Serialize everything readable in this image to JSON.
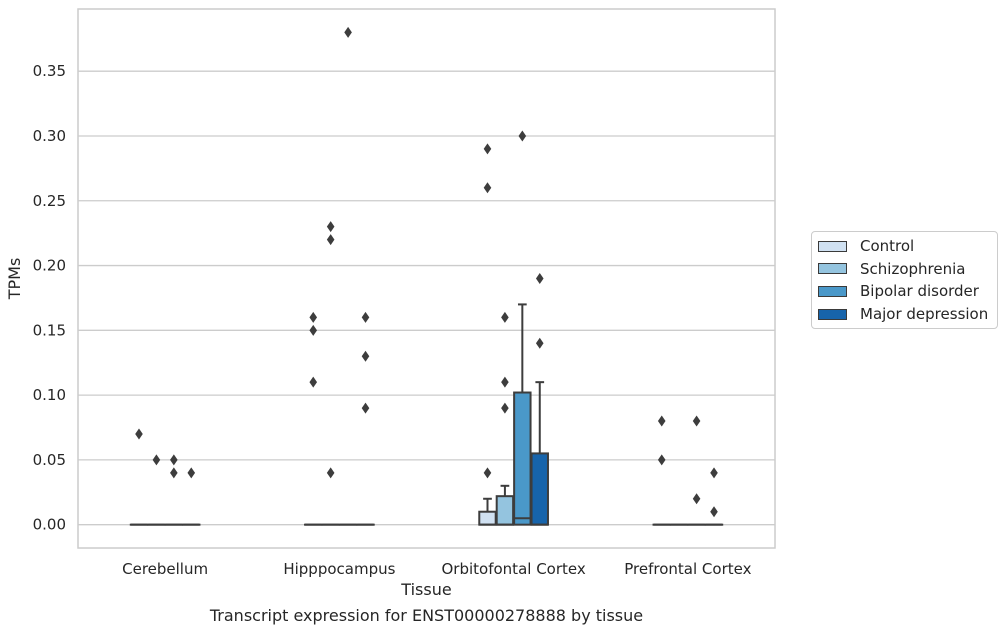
{
  "chart_data": {
    "type": "box",
    "xlabel": "Tissue",
    "ylabel": "TPMs",
    "caption": "Transcript expression for ENST00000278888 by tissue",
    "ylim": [
      -0.018,
      0.398
    ],
    "yticks": [
      0.0,
      0.05,
      0.1,
      0.15,
      0.2,
      0.25,
      0.3,
      0.35
    ],
    "ytick_labels": [
      "0.00",
      "0.05",
      "0.10",
      "0.15",
      "0.20",
      "0.25",
      "0.30",
      "0.35"
    ],
    "grid": "horizontal",
    "legend_position": "right",
    "categories": [
      "Cerebellum",
      "Hipppocampus",
      "Orbitofontal Cortex",
      "Prefrontal Cortex"
    ],
    "series": [
      {
        "name": "Control",
        "color": "#d0e1f2",
        "boxes": [
          {
            "q1": 0,
            "median": 0,
            "q3": 0,
            "whisker_low": 0,
            "whisker_high": 0,
            "outliers": [
              0.07
            ]
          },
          {
            "q1": 0,
            "median": 0,
            "q3": 0,
            "whisker_low": 0,
            "whisker_high": 0,
            "outliers": [
              0.16,
              0.15,
              0.11
            ]
          },
          {
            "q1": 0,
            "median": 0,
            "q3": 0.01,
            "whisker_low": 0,
            "whisker_high": 0.02,
            "outliers": [
              0.29,
              0.26,
              0.04
            ]
          },
          {
            "q1": 0,
            "median": 0,
            "q3": 0,
            "whisker_low": 0,
            "whisker_high": 0,
            "outliers": [
              0.08,
              0.05
            ]
          }
        ]
      },
      {
        "name": "Schizophrenia",
        "color": "#94c4df",
        "boxes": [
          {
            "q1": 0,
            "median": 0,
            "q3": 0,
            "whisker_low": 0,
            "whisker_high": 0,
            "outliers": [
              0.05
            ]
          },
          {
            "q1": 0,
            "median": 0,
            "q3": 0,
            "whisker_low": 0,
            "whisker_high": 0,
            "outliers": [
              0.23,
              0.22,
              0.04
            ]
          },
          {
            "q1": 0,
            "median": 0,
            "q3": 0.022,
            "whisker_low": 0,
            "whisker_high": 0.03,
            "outliers": [
              0.16,
              0.11,
              0.09
            ]
          },
          {
            "q1": 0,
            "median": 0,
            "q3": 0,
            "whisker_low": 0,
            "whisker_high": 0,
            "outliers": []
          }
        ]
      },
      {
        "name": "Bipolar disorder",
        "color": "#4a98c9",
        "boxes": [
          {
            "q1": 0,
            "median": 0,
            "q3": 0,
            "whisker_low": 0,
            "whisker_high": 0,
            "outliers": [
              0.05,
              0.04
            ]
          },
          {
            "q1": 0,
            "median": 0,
            "q3": 0,
            "whisker_low": 0,
            "whisker_high": 0,
            "outliers": [
              0.38
            ]
          },
          {
            "q1": 0,
            "median": 0.005,
            "q3": 0.102,
            "whisker_low": 0,
            "whisker_high": 0.17,
            "outliers": [
              0.3
            ]
          },
          {
            "q1": 0,
            "median": 0,
            "q3": 0,
            "whisker_low": 0,
            "whisker_high": 0,
            "outliers": [
              0.08,
              0.02
            ]
          }
        ]
      },
      {
        "name": "Major depression",
        "color": "#1764ab",
        "boxes": [
          {
            "q1": 0,
            "median": 0,
            "q3": 0,
            "whisker_low": 0,
            "whisker_high": 0,
            "outliers": [
              0.04
            ]
          },
          {
            "q1": 0,
            "median": 0,
            "q3": 0,
            "whisker_low": 0,
            "whisker_high": 0,
            "outliers": [
              0.16,
              0.13,
              0.09
            ]
          },
          {
            "q1": 0,
            "median": 0,
            "q3": 0.055,
            "whisker_low": 0,
            "whisker_high": 0.11,
            "outliers": [
              0.19,
              0.14
            ]
          },
          {
            "q1": 0,
            "median": 0,
            "q3": 0,
            "whisker_low": 0,
            "whisker_high": 0,
            "outliers": [
              0.04,
              0.01
            ]
          }
        ]
      }
    ]
  }
}
